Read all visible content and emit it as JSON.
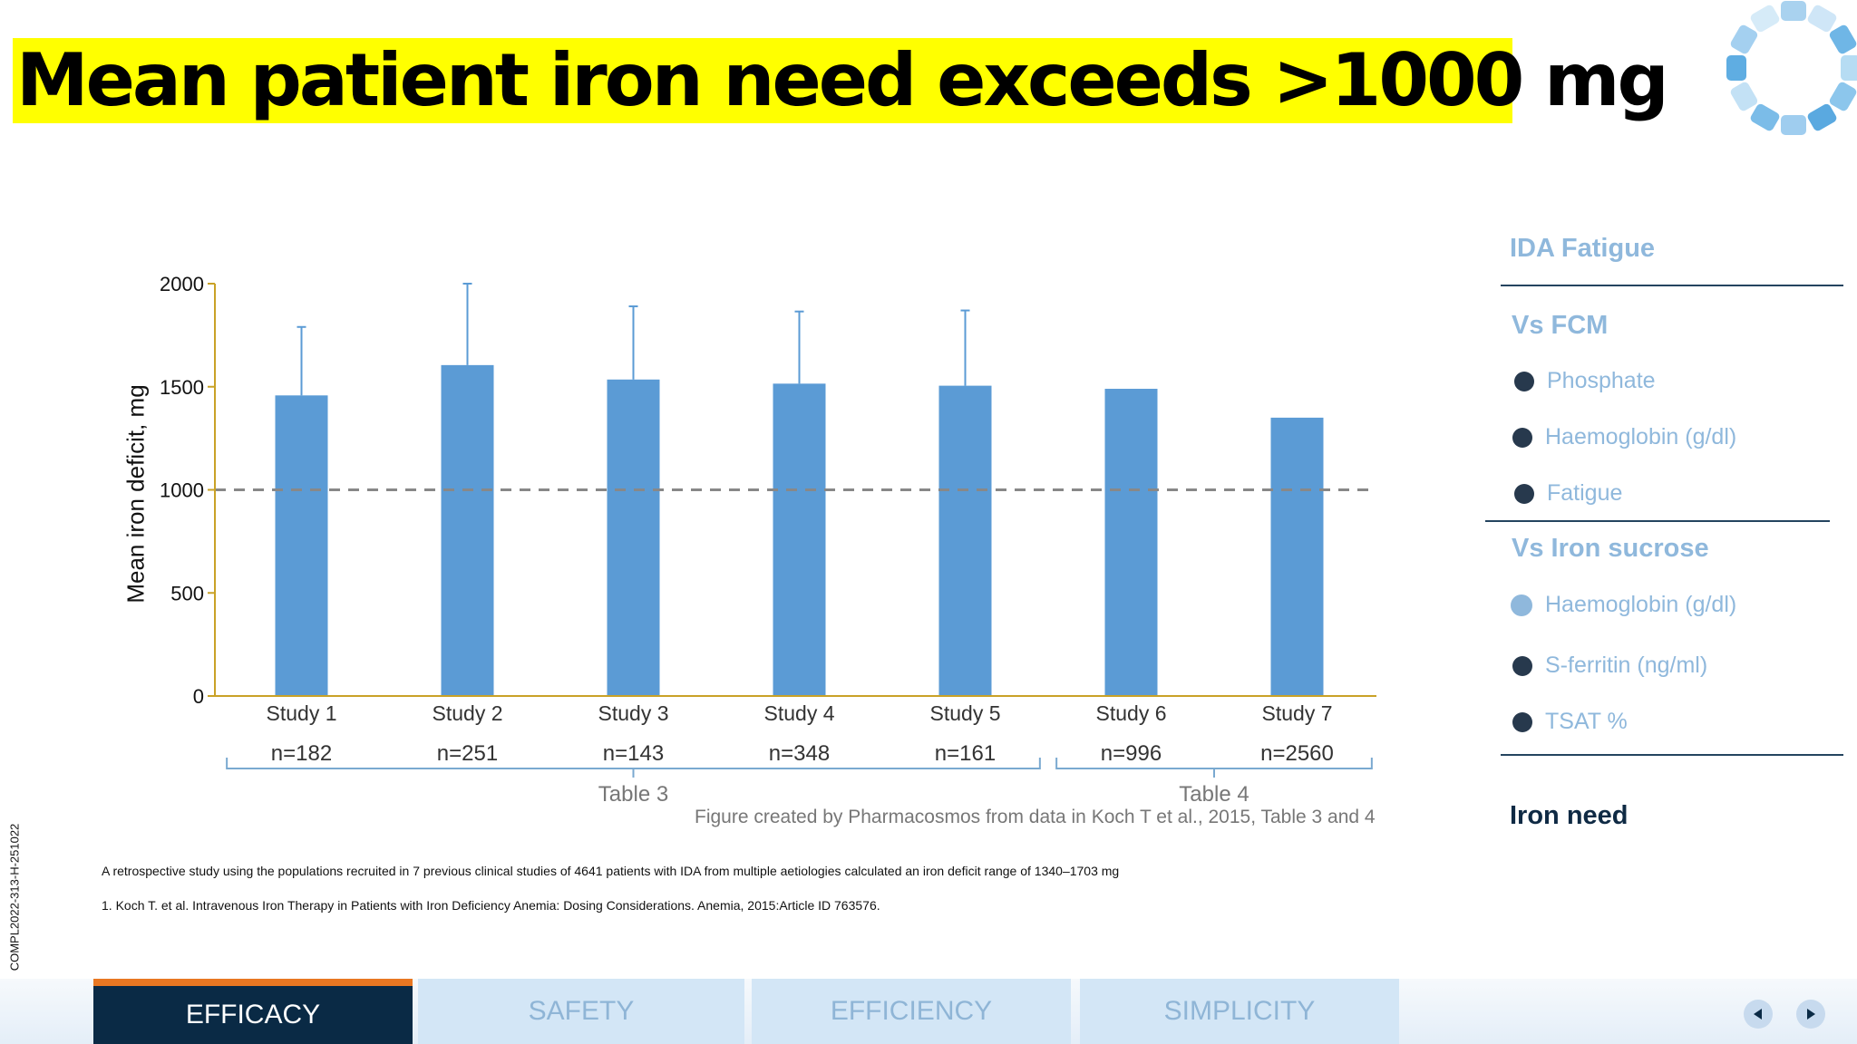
{
  "title": "Mean patient iron need exceeds >1000 mg",
  "chart_data": {
    "type": "bar",
    "categories": [
      "Study 1",
      "Study 2",
      "Study 3",
      "Study 4",
      "Study 5",
      "Study 6",
      "Study 7"
    ],
    "sample_sizes": [
      "n=182",
      "n=251",
      "n=143",
      "n=348",
      "n=161",
      "n=996",
      "n=2560"
    ],
    "values": [
      1458,
      1605,
      1535,
      1515,
      1505,
      1490,
      1350
    ],
    "error_upper": [
      1790,
      2000,
      1890,
      1865,
      1870,
      null,
      null
    ],
    "ylabel": "Mean iron deficit, mg",
    "ylim": [
      0,
      2000
    ],
    "yticks": [
      0,
      500,
      1000,
      1500,
      2000
    ],
    "reference_line": 1000,
    "groups": [
      {
        "label": "Table 3",
        "from": 0,
        "to": 4
      },
      {
        "label": "Table 4",
        "from": 5,
        "to": 6
      }
    ],
    "bar_color": "#5b9bd5",
    "axis_color": "#c9a227",
    "caption": "Figure created by Pharmacosmos from data in Koch T et al., 2015, Table 3 and 4"
  },
  "sidebar": {
    "ida_fatigue": "IDA Fatigue",
    "vs_fcm": "Vs FCM",
    "fcm_items": [
      "Phosphate",
      "Haemoglobin (g/dl)",
      "Fatigue"
    ],
    "vs_iron_sucrose": "Vs Iron sucrose",
    "sucrose_items": [
      "Haemoglobin (g/dl)",
      "S-ferritin (ng/ml)",
      "TSAT %"
    ],
    "iron_need": "Iron need"
  },
  "footnotes": {
    "summary": "A retrospective study using the populations recruited in 7 previous clinical studies of 4641 patients with IDA from multiple aetiologies calculated an iron deficit range of 1340–1703 mg",
    "reference": "1. Koch T. et al. Intravenous Iron Therapy in Patients with Iron Deficiency Anemia: Dosing Considerations. Anemia, 2015:Article ID 763576."
  },
  "doc_code": "COMPL2022-313-H-251022",
  "tabs": [
    "EFFICACY",
    "SAFETY",
    "EFFICIENCY",
    "SIMPLICITY"
  ],
  "active_tab": "EFFICACY",
  "colors": {
    "title_highlight": "#ffff00",
    "tab_active": "#0a2a45",
    "tab_accent": "#e87722",
    "sidebar_text": "#8fb8dc"
  }
}
